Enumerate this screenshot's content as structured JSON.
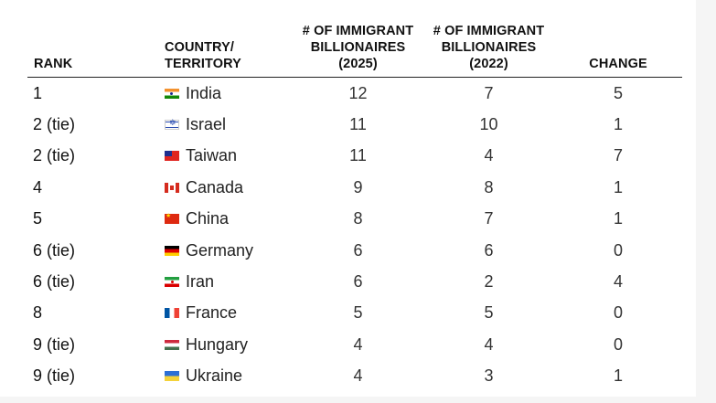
{
  "table": {
    "headers": {
      "rank": "RANK",
      "country_line1": "COUNTRY/",
      "country_line2": "TERRITORY",
      "col2025_line1": "# OF IMMIGRANT",
      "col2025_line2": "BILLIONAIRES",
      "col2025_line3": "(2025)",
      "col2022_line1": "# OF IMMIGRANT",
      "col2022_line2": "BILLIONAIRES",
      "col2022_line3": "(2022)",
      "change": "CHANGE"
    },
    "rows": [
      {
        "rank": "1",
        "flag": "india-flag-icon",
        "country": "India",
        "v2025": "12",
        "v2022": "7",
        "change": "5"
      },
      {
        "rank": "2 (tie)",
        "flag": "israel-flag-icon",
        "country": "Israel",
        "v2025": "11",
        "v2022": "10",
        "change": "1"
      },
      {
        "rank": "2 (tie)",
        "flag": "taiwan-flag-icon",
        "country": "Taiwan",
        "v2025": "11",
        "v2022": "4",
        "change": "7"
      },
      {
        "rank": "4",
        "flag": "canada-flag-icon",
        "country": "Canada",
        "v2025": "9",
        "v2022": "8",
        "change": "1"
      },
      {
        "rank": "5",
        "flag": "china-flag-icon",
        "country": "China",
        "v2025": "8",
        "v2022": "7",
        "change": "1"
      },
      {
        "rank": "6 (tie)",
        "flag": "germany-flag-icon",
        "country": "Germany",
        "v2025": "6",
        "v2022": "6",
        "change": "0"
      },
      {
        "rank": "6 (tie)",
        "flag": "iran-flag-icon",
        "country": "Iran",
        "v2025": "6",
        "v2022": "2",
        "change": "4"
      },
      {
        "rank": "8",
        "flag": "france-flag-icon",
        "country": "France",
        "v2025": "5",
        "v2022": "5",
        "change": "0"
      },
      {
        "rank": "9 (tie)",
        "flag": "hungary-flag-icon",
        "country": "Hungary",
        "v2025": "4",
        "v2022": "4",
        "change": "0"
      },
      {
        "rank": "9 (tie)",
        "flag": "ukraine-flag-icon",
        "country": "Ukraine",
        "v2025": "4",
        "v2022": "3",
        "change": "1"
      }
    ]
  }
}
